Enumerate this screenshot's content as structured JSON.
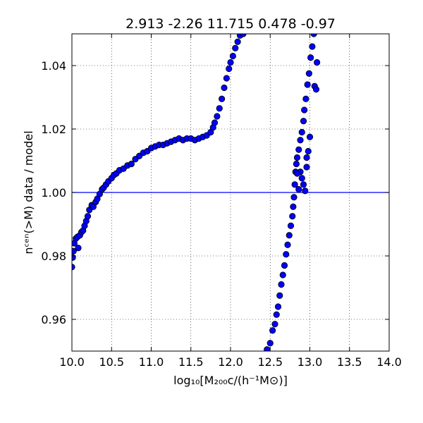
{
  "chart_data": {
    "type": "scatter",
    "title": "2.913 -2.26 11.715 0.478 -0.97",
    "xlabel": "log₁₀[M₂₀₀c/(h⁻¹M⊙)]",
    "ylabel": "nᶜᵉⁿ(>M) data / model",
    "xlim": [
      10.0,
      14.0
    ],
    "ylim": [
      0.95,
      1.05
    ],
    "x_ticks": [
      "10.0",
      "10.5",
      "11.0",
      "11.5",
      "12.0",
      "12.5",
      "13.0",
      "13.5",
      "14.0"
    ],
    "y_ticks": [
      "0.96",
      "0.98",
      "1.00",
      "1.02",
      "1.04"
    ],
    "x_tick_values": [
      10.0,
      10.5,
      11.0,
      11.5,
      12.0,
      12.5,
      13.0,
      13.5,
      14.0
    ],
    "y_tick_values": [
      0.96,
      0.98,
      1.0,
      1.02,
      1.04
    ],
    "grid": true,
    "reference_line": {
      "y": 1.0,
      "color": "#0000ff"
    },
    "marker_color": "#0000ff",
    "series": [
      {
        "points": [
          [
            10.0,
            0.9765
          ],
          [
            10.01,
            0.9795
          ],
          [
            10.02,
            0.9815
          ],
          [
            10.03,
            0.984
          ],
          [
            10.05,
            0.9855
          ],
          [
            10.07,
            0.986
          ],
          [
            10.08,
            0.9825
          ],
          [
            10.1,
            0.9865
          ],
          [
            10.12,
            0.9875
          ],
          [
            10.14,
            0.988
          ],
          [
            10.16,
            0.9895
          ],
          [
            10.18,
            0.991
          ],
          [
            10.2,
            0.9925
          ],
          [
            10.22,
            0.9945
          ],
          [
            10.25,
            0.996
          ],
          [
            10.27,
            0.9955
          ],
          [
            10.3,
            0.997
          ],
          [
            10.32,
            0.998
          ],
          [
            10.35,
            0.9995
          ],
          [
            10.38,
            1.001
          ],
          [
            10.4,
            1.0015
          ],
          [
            10.43,
            1.0025
          ],
          [
            10.46,
            1.0035
          ],
          [
            10.5,
            1.0045
          ],
          [
            10.53,
            1.0055
          ],
          [
            10.56,
            1.006
          ],
          [
            10.6,
            1.007
          ],
          [
            10.65,
            1.0075
          ],
          [
            10.7,
            1.0085
          ],
          [
            10.75,
            1.009
          ],
          [
            10.8,
            1.0105
          ],
          [
            10.85,
            1.0115
          ],
          [
            10.9,
            1.0125
          ],
          [
            10.95,
            1.013
          ],
          [
            11.0,
            1.014
          ],
          [
            11.05,
            1.0145
          ],
          [
            11.1,
            1.015
          ],
          [
            11.15,
            1.015
          ],
          [
            11.2,
            1.0155
          ],
          [
            11.25,
            1.016
          ],
          [
            11.3,
            1.0165
          ],
          [
            11.35,
            1.017
          ],
          [
            11.4,
            1.0165
          ],
          [
            11.45,
            1.017
          ],
          [
            11.5,
            1.017
          ],
          [
            11.55,
            1.0165
          ],
          [
            11.6,
            1.017
          ],
          [
            11.65,
            1.0175
          ],
          [
            11.7,
            1.018
          ],
          [
            11.75,
            1.019
          ],
          [
            11.78,
            1.0205
          ],
          [
            11.8,
            1.022
          ],
          [
            11.83,
            1.024
          ],
          [
            11.86,
            1.0265
          ],
          [
            11.89,
            1.0295
          ],
          [
            11.92,
            1.033
          ],
          [
            11.95,
            1.036
          ],
          [
            11.98,
            1.039
          ],
          [
            12.0,
            1.041
          ],
          [
            12.03,
            1.043
          ],
          [
            12.06,
            1.0455
          ],
          [
            12.09,
            1.0475
          ],
          [
            12.12,
            1.0495
          ],
          [
            12.16,
            1.05
          ],
          [
            12.46,
            0.9505
          ],
          [
            12.5,
            0.9525
          ],
          [
            12.53,
            0.9565
          ],
          [
            12.56,
            0.9585
          ],
          [
            12.58,
            0.9615
          ],
          [
            12.6,
            0.964
          ],
          [
            12.62,
            0.9675
          ],
          [
            12.64,
            0.971
          ],
          [
            12.66,
            0.974
          ],
          [
            12.68,
            0.977
          ],
          [
            12.7,
            0.9805
          ],
          [
            12.72,
            0.9835
          ],
          [
            12.74,
            0.9865
          ],
          [
            12.76,
            0.9895
          ],
          [
            12.78,
            0.9925
          ],
          [
            12.79,
            0.9955
          ],
          [
            12.8,
            0.9985
          ],
          [
            12.81,
            1.0025
          ],
          [
            12.82,
            1.0065
          ],
          [
            12.83,
            1.009
          ],
          [
            12.84,
            1.011
          ],
          [
            12.86,
            1.0135
          ],
          [
            12.88,
            1.0165
          ],
          [
            12.9,
            1.019
          ],
          [
            12.92,
            1.0225
          ],
          [
            12.93,
            1.026
          ],
          [
            12.95,
            1.0295
          ],
          [
            12.97,
            1.034
          ],
          [
            12.99,
            1.0375
          ],
          [
            13.01,
            1.0425
          ],
          [
            13.03,
            1.046
          ],
          [
            13.06,
            1.0335
          ],
          [
            13.08,
            1.0325
          ],
          [
            13.09,
            1.041
          ],
          [
            13.05,
            1.05
          ],
          [
            12.88,
            1.0065
          ],
          [
            12.9,
            1.0045
          ],
          [
            12.92,
            1.0025
          ],
          [
            12.94,
            1.0005
          ],
          [
            12.96,
            1.008
          ],
          [
            12.98,
            1.013
          ],
          [
            13.0,
            1.0175
          ],
          [
            12.96,
            1.011
          ],
          [
            12.84,
            1.006
          ],
          [
            12.86,
            1.001
          ]
        ]
      }
    ]
  }
}
